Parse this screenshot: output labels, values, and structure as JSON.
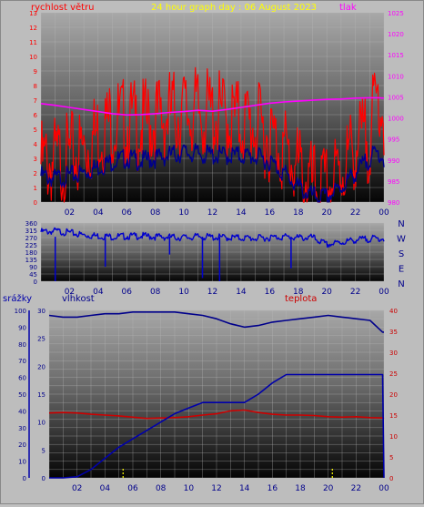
{
  "title": "24 hour graph day : 06 August 2023",
  "colors": {
    "wind": "#ff0000",
    "pressure": "#ff00ff",
    "gust_avg": "#00008b",
    "direction": "#0000cd",
    "humidity": "#00008b",
    "temp": "#cc0000",
    "rain": "#0000aa",
    "rain_bars": "#ffff00",
    "title": "#ffff00"
  },
  "x_ticks": [
    "02",
    "04",
    "06",
    "08",
    "10",
    "12",
    "14",
    "16",
    "18",
    "20",
    "22",
    "00"
  ],
  "chart_data": [
    {
      "type": "line",
      "name_left": "rychlost větru",
      "name_right": "tlak",
      "ylim_left": [
        0,
        13
      ],
      "yticks_left": [
        "0",
        "1",
        "2",
        "3",
        "4",
        "5",
        "6",
        "7",
        "8",
        "9",
        "10",
        "11",
        "12",
        "13"
      ],
      "ylim_right": [
        980,
        1025
      ],
      "yticks_right": [
        "980",
        "985",
        "990",
        "995",
        "1000",
        "1005",
        "1010",
        "1015",
        "1020",
        "1025"
      ],
      "x_hours": [
        0,
        1,
        2,
        3,
        4,
        5,
        6,
        7,
        8,
        9,
        10,
        11,
        12,
        13,
        14,
        15,
        16,
        17,
        18,
        19,
        20,
        21,
        22,
        23,
        23.6,
        24
      ],
      "wind": [
        2.6,
        2.8,
        3.0,
        3.6,
        4.8,
        5.6,
        5.4,
        5.2,
        5.6,
        6.0,
        6.2,
        6.1,
        6.0,
        5.8,
        5.5,
        5.2,
        4.5,
        3.6,
        2.2,
        1.0,
        0.8,
        2.2,
        3.8,
        4.5,
        7.5,
        6.0
      ],
      "wind_avg": [
        1.8,
        1.6,
        1.8,
        2.0,
        2.4,
        2.8,
        3.0,
        2.8,
        3.0,
        3.2,
        3.4,
        3.3,
        3.2,
        3.2,
        3.2,
        3.1,
        2.8,
        2.0,
        1.0,
        0.4,
        0.3,
        1.0,
        2.0,
        3.0,
        3.4,
        3.0
      ],
      "pressure": [
        1003.4,
        1003.0,
        1002.5,
        1002.0,
        1001.5,
        1001.0,
        1000.7,
        1000.8,
        1001.0,
        1001.3,
        1001.5,
        1001.8,
        1001.6,
        1002.0,
        1002.5,
        1003.0,
        1003.5,
        1003.8,
        1004.0,
        1004.2,
        1004.4,
        1004.5,
        1004.7,
        1004.8,
        1004.8,
        1004.7
      ]
    },
    {
      "type": "scatter",
      "ylim": [
        0,
        360
      ],
      "yticks": [
        "0",
        "45",
        "90",
        "135",
        "180",
        "225",
        "270",
        "315",
        "360"
      ],
      "compass": [
        "N",
        "W",
        "S",
        "E",
        "N"
      ],
      "x_hours": [
        0,
        1,
        2,
        3,
        4,
        5,
        6,
        7,
        8,
        9,
        10,
        11,
        12,
        13,
        14,
        15,
        16,
        17,
        18,
        19,
        20,
        21,
        22,
        23,
        24
      ],
      "direction": [
        305,
        310,
        300,
        285,
        280,
        275,
        278,
        280,
        275,
        272,
        270,
        275,
        272,
        270,
        268,
        265,
        270,
        275,
        268,
        270,
        225,
        240,
        255,
        262,
        265
      ],
      "dips": [
        {
          "x": 1.0,
          "v": 0
        },
        {
          "x": 4.5,
          "v": 90
        },
        {
          "x": 9.0,
          "v": 165
        },
        {
          "x": 11.3,
          "v": 20
        },
        {
          "x": 12.5,
          "v": 0
        },
        {
          "x": 17.5,
          "v": 80
        }
      ]
    },
    {
      "type": "line",
      "name_left": "srážky",
      "name_mid": "vlhkost",
      "name_right": "teplota",
      "ylim_left": [
        0,
        100
      ],
      "yticks_left": [
        "0",
        "10",
        "20",
        "30",
        "40",
        "50",
        "60",
        "70",
        "80",
        "90",
        "100"
      ],
      "ylim_mid": [
        0,
        30
      ],
      "yticks_mid": [
        "0",
        "5",
        "10",
        "15",
        "20",
        "25",
        "30"
      ],
      "ylim_right": [
        0,
        40
      ],
      "yticks_right": [
        "0",
        "5",
        "10",
        "15",
        "20",
        "25",
        "30",
        "35",
        "40"
      ],
      "x_hours": [
        0,
        1,
        2,
        3,
        4,
        5,
        6,
        7,
        8,
        9,
        10,
        11,
        12,
        13,
        14,
        15,
        16,
        17,
        18,
        19,
        20,
        21,
        22,
        23,
        23.9,
        24
      ],
      "humidity": [
        97,
        96,
        96,
        97,
        98,
        98,
        99,
        99,
        99,
        99,
        98,
        97,
        95,
        92,
        90,
        91,
        93,
        94,
        95,
        96,
        97,
        96,
        95,
        94,
        87,
        87
      ],
      "temp": [
        15.5,
        15.6,
        15.5,
        15.2,
        15.0,
        14.8,
        14.5,
        14.2,
        14.3,
        14.4,
        14.6,
        15.0,
        15.3,
        16.0,
        16.2,
        15.6,
        15.2,
        15.0,
        15.0,
        14.9,
        14.6,
        14.5,
        14.6,
        14.4,
        14.3,
        14.2
      ],
      "rain": [
        0,
        0,
        0.2,
        1.5,
        3.5,
        5.5,
        7.0,
        8.5,
        10.0,
        11.5,
        12.5,
        13.5,
        13.5,
        13.5,
        13.5,
        15.0,
        17.0,
        18.5,
        18.5,
        18.5,
        18.5,
        18.5,
        18.5,
        18.5,
        18.5,
        0
      ],
      "rain_bars": [
        {
          "x": 5.3,
          "v": 1.8
        },
        {
          "x": 20.3,
          "v": 1.8
        }
      ]
    }
  ]
}
